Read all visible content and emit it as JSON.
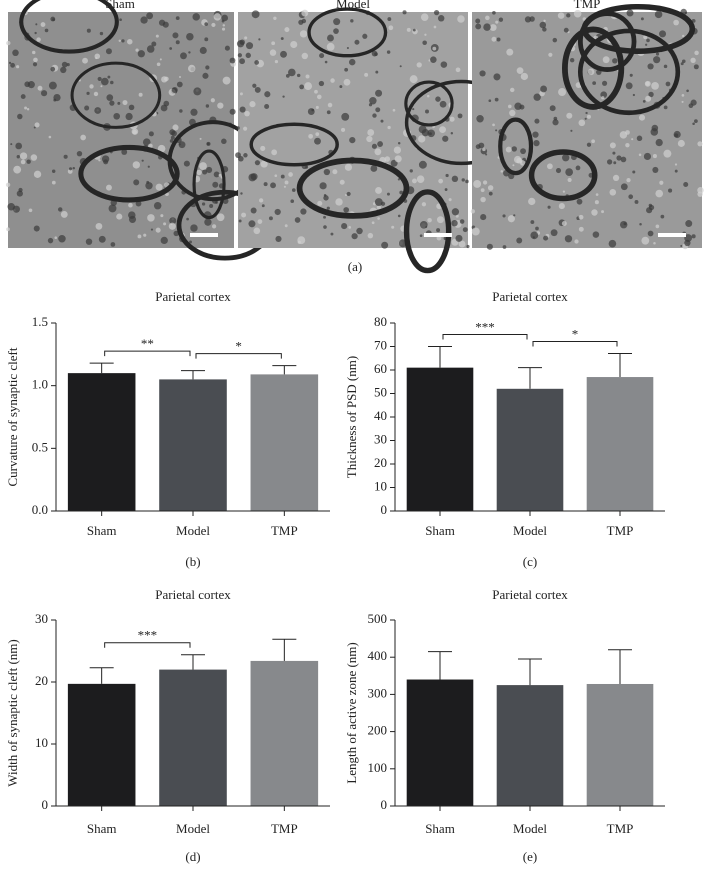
{
  "panel_a": {
    "labels": [
      "Sham",
      "Model",
      "TMP"
    ],
    "caption": "(a)"
  },
  "chart_data": [
    {
      "type": "bar",
      "title": "Parietal cortex",
      "ylabel": "Curvature of synaptic cleft",
      "caption": "(b)",
      "categories": [
        "Sham",
        "Model",
        "TMP"
      ],
      "values": [
        1.1,
        1.05,
        1.09
      ],
      "errors": [
        0.08,
        0.07,
        0.07
      ],
      "colors": [
        "#1c1c1e",
        "#4a4d52",
        "#87898c"
      ],
      "ylim": [
        0,
        1.5
      ],
      "yticks": [
        {
          "value": 0,
          "label": "0.0"
        },
        {
          "value": 0.5,
          "label": "0.5"
        },
        {
          "value": 1,
          "label": "1.0"
        },
        {
          "value": 1.5,
          "label": "1.5"
        }
      ],
      "annotations": [
        {
          "text": "**",
          "between": [
            "Sham",
            "Model"
          ]
        },
        {
          "text": "*",
          "between": [
            "Model",
            "TMP"
          ]
        }
      ]
    },
    {
      "type": "bar",
      "title": "Parietal cortex",
      "ylabel": "Thickness of PSD (nm)",
      "caption": "(c)",
      "categories": [
        "Sham",
        "Model",
        "TMP"
      ],
      "values": [
        61,
        52,
        57
      ],
      "errors": [
        9,
        9,
        10
      ],
      "colors": [
        "#1c1c1e",
        "#4a4d52",
        "#87898c"
      ],
      "ylim": [
        0,
        80
      ],
      "yticks": [
        0,
        10,
        20,
        30,
        40,
        50,
        60,
        70,
        80
      ],
      "annotations": [
        {
          "text": "***",
          "between": [
            "Sham",
            "Model"
          ]
        },
        {
          "text": "*",
          "between": [
            "Model",
            "TMP"
          ]
        }
      ]
    },
    {
      "type": "bar",
      "title": "Parietal cortex",
      "ylabel": "Width of synaptic cleft (nm)",
      "caption": "(d)",
      "categories": [
        "Sham",
        "Model",
        "TMP"
      ],
      "values": [
        19.7,
        22,
        23.4
      ],
      "errors": [
        2.6,
        2.4,
        3.5
      ],
      "colors": [
        "#1c1c1e",
        "#4a4d52",
        "#87898c"
      ],
      "ylim": [
        0,
        30
      ],
      "yticks": [
        0,
        10,
        20,
        30
      ],
      "annotations": [
        {
          "text": "***",
          "between": [
            "Sham",
            "Model"
          ]
        }
      ]
    },
    {
      "type": "bar",
      "title": "Parietal cortex",
      "ylabel": "Length of active zone (nm)",
      "caption": "(e)",
      "categories": [
        "Sham",
        "Model",
        "TMP"
      ],
      "values": [
        340,
        325,
        328
      ],
      "errors": [
        75,
        70,
        92
      ],
      "colors": [
        "#1c1c1e",
        "#4a4d52",
        "#87898c"
      ],
      "ylim": [
        0,
        500
      ],
      "yticks": [
        0,
        100,
        200,
        300,
        400,
        500
      ],
      "annotations": []
    }
  ]
}
